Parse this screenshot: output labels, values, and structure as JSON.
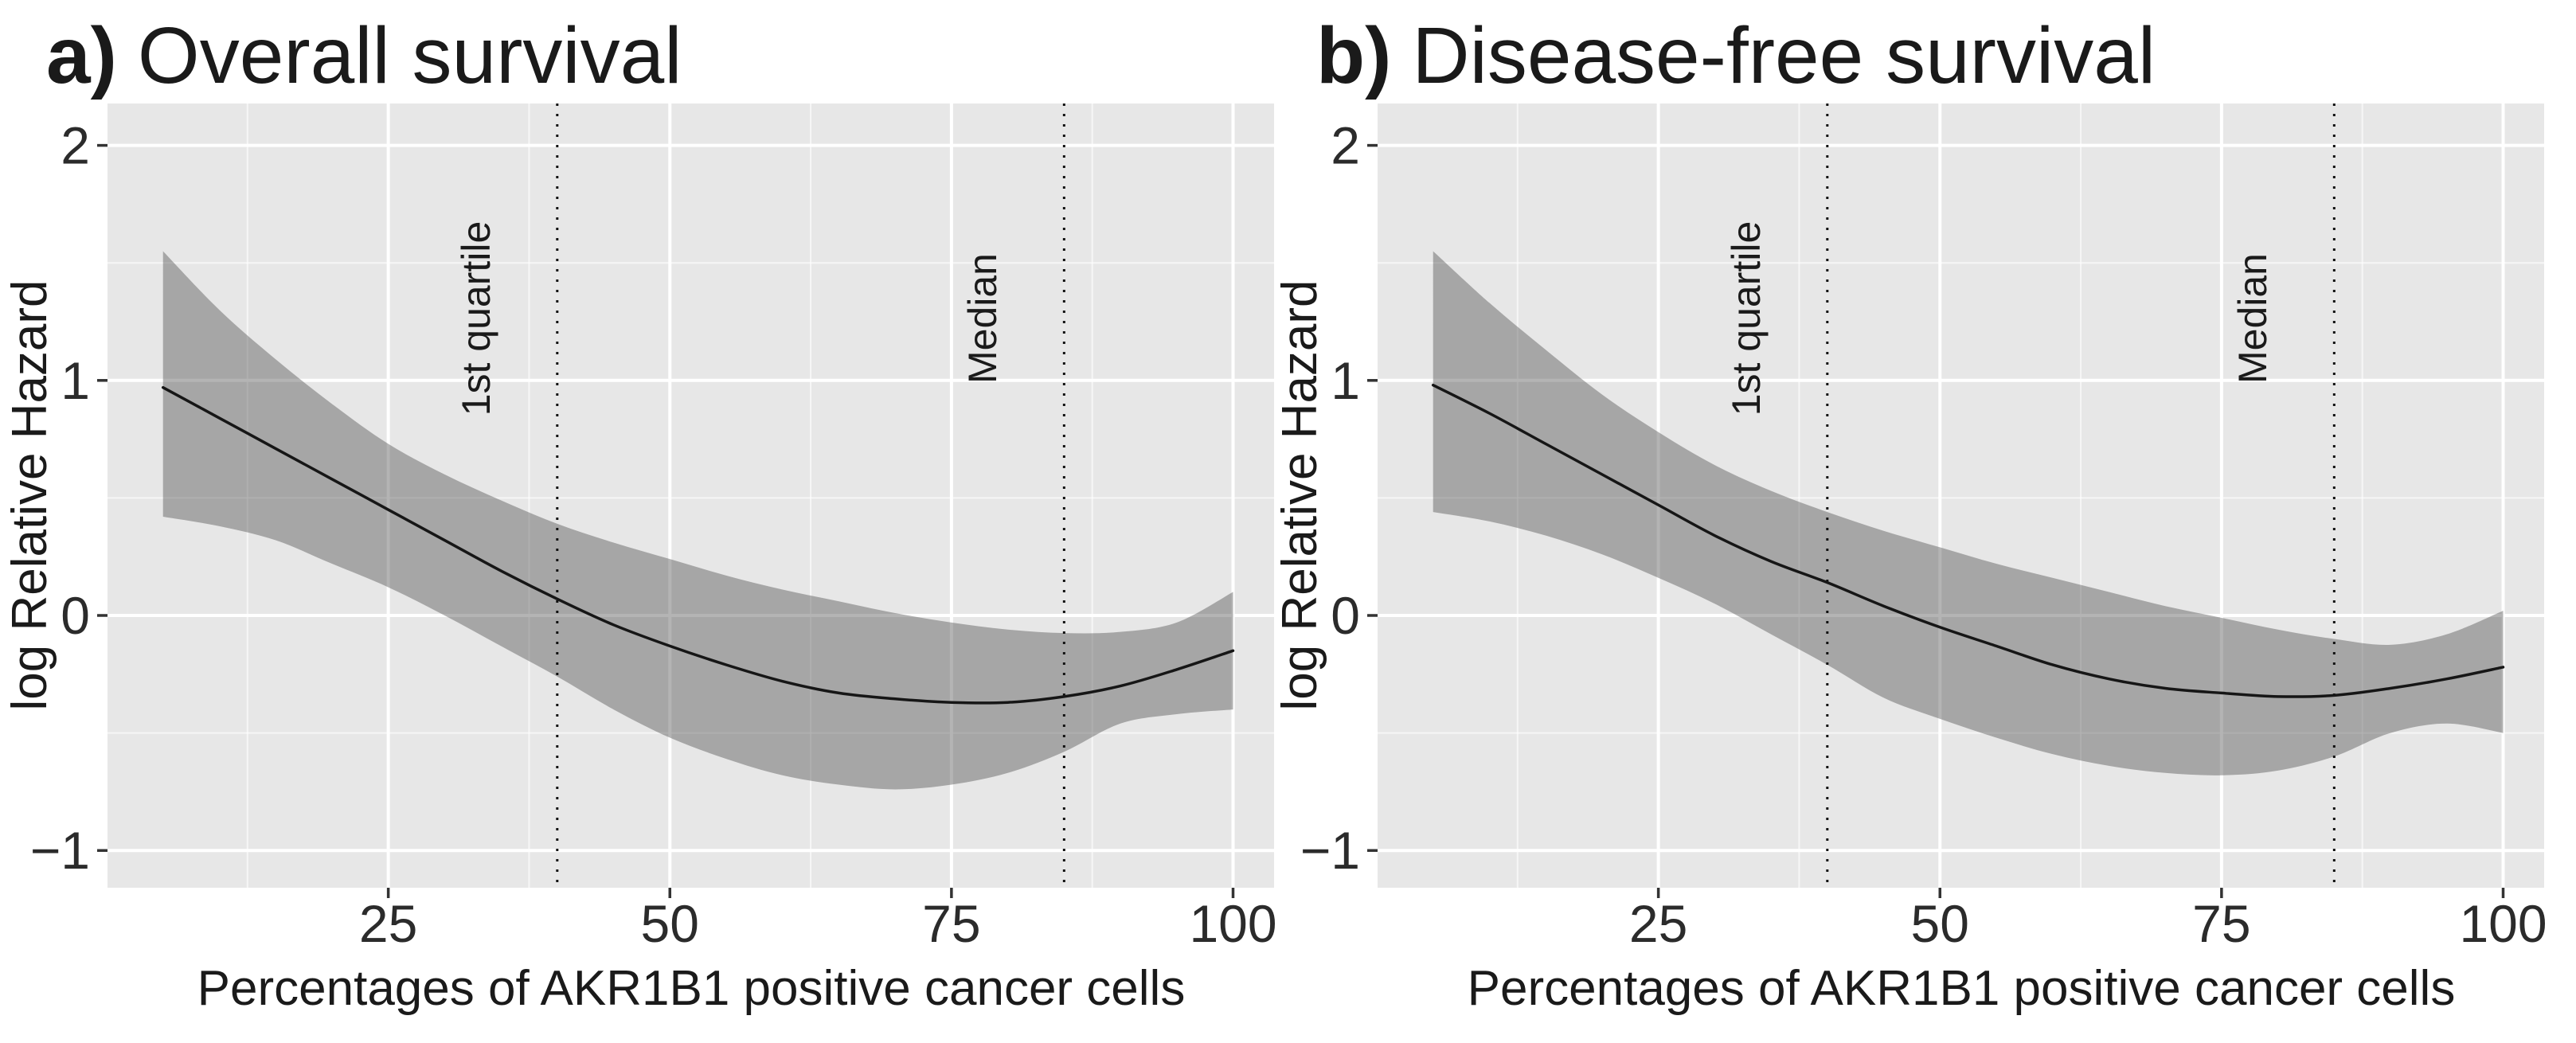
{
  "colors": {
    "panel_background": "#e7e7e7",
    "grid_major": "#ffffff",
    "grid_minor": "#ffffff",
    "confidence_band": "rgba(77,77,77,0.42)",
    "fit_line": "#161616",
    "reference_line": "#111111",
    "tick_mark": "#333333",
    "text": "#1a1a1a"
  },
  "chart_data": [
    {
      "type": "line",
      "panel_tag": "a)",
      "title": "Overall survival",
      "xlabel": "Percentages of AKR1B1 positive cancer cells",
      "ylabel": "log Relative Hazard",
      "xlim": [
        0,
        103.6
      ],
      "ylim": [
        -1.16,
        2.18
      ],
      "xticks": [
        25,
        50,
        75,
        100
      ],
      "yticks": [
        2,
        1,
        0,
        -1
      ],
      "xticks_minor": [
        12.5,
        37.5,
        62.5,
        87.5
      ],
      "yticks_minor": [
        1.5,
        0.5,
        -0.5
      ],
      "grid": true,
      "legend": "none",
      "vlines": [
        {
          "x": 40,
          "label": "1st quartile",
          "style": "dotted"
        },
        {
          "x": 85,
          "label": "Median",
          "style": "dotted"
        }
      ],
      "x": [
        5,
        10,
        15,
        20,
        25,
        30,
        35,
        40,
        45,
        50,
        55,
        60,
        65,
        70,
        75,
        80,
        85,
        90,
        95,
        100
      ],
      "series": [
        {
          "name": "smoothed log relative hazard",
          "role": "fit",
          "values": [
            0.97,
            0.84,
            0.71,
            0.58,
            0.45,
            0.32,
            0.19,
            0.07,
            -0.04,
            -0.13,
            -0.21,
            -0.28,
            -0.33,
            -0.355,
            -0.37,
            -0.37,
            -0.345,
            -0.3,
            -0.23,
            -0.15
          ]
        },
        {
          "name": "95% CI upper",
          "role": "ci_upper",
          "values": [
            1.55,
            1.3,
            1.09,
            0.9,
            0.73,
            0.6,
            0.49,
            0.39,
            0.31,
            0.24,
            0.17,
            0.11,
            0.06,
            0.01,
            -0.03,
            -0.06,
            -0.075,
            -0.07,
            -0.03,
            0.1
          ]
        },
        {
          "name": "95% CI lower",
          "role": "ci_lower",
          "values": [
            0.42,
            0.38,
            0.32,
            0.22,
            0.12,
            0.0,
            -0.13,
            -0.26,
            -0.4,
            -0.52,
            -0.61,
            -0.68,
            -0.72,
            -0.74,
            -0.72,
            -0.67,
            -0.58,
            -0.46,
            -0.42,
            -0.4
          ]
        }
      ]
    },
    {
      "type": "line",
      "panel_tag": "b)",
      "title": "Disease-free survival",
      "xlabel": "Percentages of AKR1B1 positive cancer cells",
      "ylabel": "log Relative Hazard",
      "xlim": [
        0,
        103.6
      ],
      "ylim": [
        -1.16,
        2.18
      ],
      "xticks": [
        25,
        50,
        75,
        100
      ],
      "yticks": [
        2,
        1,
        0,
        -1
      ],
      "xticks_minor": [
        12.5,
        37.5,
        62.5,
        87.5
      ],
      "yticks_minor": [
        1.5,
        0.5,
        -0.5
      ],
      "grid": true,
      "legend": "none",
      "vlines": [
        {
          "x": 40,
          "label": "1st quartile",
          "style": "dotted"
        },
        {
          "x": 85,
          "label": "Median",
          "style": "dotted"
        }
      ],
      "x": [
        5,
        10,
        15,
        20,
        25,
        30,
        35,
        40,
        45,
        50,
        55,
        60,
        65,
        70,
        75,
        80,
        85,
        90,
        95,
        100
      ],
      "series": [
        {
          "name": "smoothed log relative hazard",
          "role": "fit",
          "values": [
            0.98,
            0.86,
            0.73,
            0.6,
            0.47,
            0.34,
            0.23,
            0.14,
            0.04,
            -0.05,
            -0.13,
            -0.21,
            -0.27,
            -0.31,
            -0.33,
            -0.345,
            -0.34,
            -0.31,
            -0.27,
            -0.22
          ]
        },
        {
          "name": "95% CI upper",
          "role": "ci_upper",
          "values": [
            1.55,
            1.33,
            1.13,
            0.94,
            0.78,
            0.64,
            0.53,
            0.44,
            0.36,
            0.29,
            0.22,
            0.16,
            0.1,
            0.04,
            -0.01,
            -0.06,
            -0.1,
            -0.125,
            -0.08,
            0.02
          ]
        },
        {
          "name": "95% CI lower",
          "role": "ci_lower",
          "values": [
            0.44,
            0.4,
            0.34,
            0.26,
            0.16,
            0.05,
            -0.08,
            -0.21,
            -0.35,
            -0.44,
            -0.52,
            -0.59,
            -0.64,
            -0.67,
            -0.68,
            -0.66,
            -0.6,
            -0.5,
            -0.46,
            -0.5
          ]
        }
      ]
    }
  ]
}
